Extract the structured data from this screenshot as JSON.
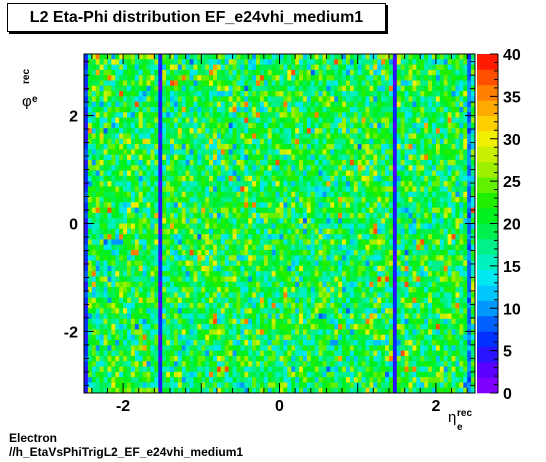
{
  "chart_data": {
    "type": "heatmap",
    "title": "L2 Eta-Phi distribution EF_e24vhi_medium1",
    "x_axis": {
      "symbol": "η",
      "subscript": "e",
      "superscript": "rec",
      "range": [
        -2.5,
        2.5
      ],
      "ticks": [
        -2,
        0,
        2
      ],
      "tick_labels": [
        "-2",
        "0",
        "2"
      ]
    },
    "y_axis": {
      "symbol": "φ",
      "subscript": "e",
      "superscript": "rec",
      "range": [
        -3.1416,
        3.1416
      ],
      "ticks": [
        -2,
        0,
        2
      ],
      "tick_labels": [
        "-2",
        "0",
        "2"
      ]
    },
    "z_axis": {
      "range": [
        0,
        40
      ],
      "ticks": [
        0,
        5,
        10,
        15,
        20,
        25,
        30,
        35,
        40
      ],
      "tick_labels": [
        "0",
        "5",
        "10",
        "15",
        "20",
        "25",
        "30",
        "35",
        "40"
      ]
    },
    "bins": {
      "nx": 100,
      "ny": 64
    },
    "typical_value": 20,
    "max_value": 37,
    "low_efficiency_eta_bands": [
      {
        "eta": -2.46,
        "value": 6
      },
      {
        "eta": -1.52,
        "value": 5
      },
      {
        "eta": 1.48,
        "value": 5
      },
      {
        "eta": 2.44,
        "value": 9
      }
    ],
    "palette": [
      "#7f00ff",
      "#5a00ff",
      "#2a14ff",
      "#0030ff",
      "#0060ff",
      "#0098ff",
      "#00c8ff",
      "#00e8f0",
      "#00f0c0",
      "#00f08a",
      "#00f050",
      "#00f020",
      "#20f000",
      "#60f000",
      "#9cf000",
      "#c8f000",
      "#f0f000",
      "#ffd000",
      "#ffaa00",
      "#ff8000",
      "#ff5000",
      "#ff1a00"
    ]
  },
  "footer": {
    "line1": "Electron",
    "line2": "//h_EtaVsPhiTrigL2_EF_e24vhi_medium1"
  }
}
